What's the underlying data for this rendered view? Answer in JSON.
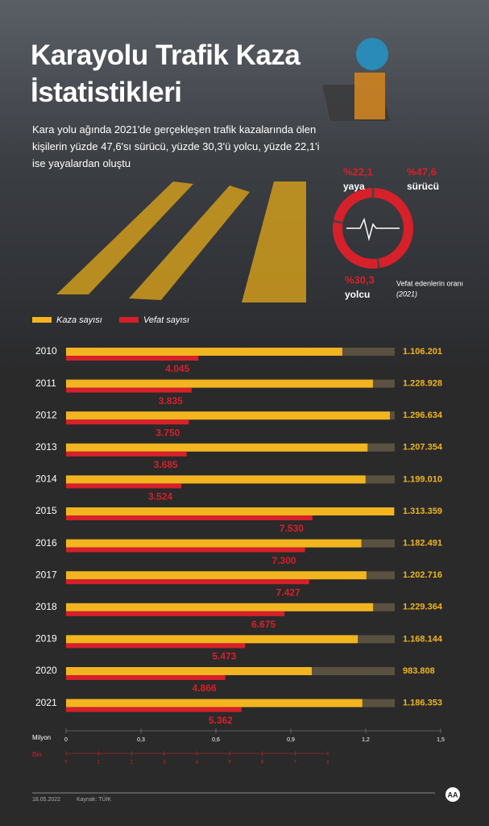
{
  "header": {
    "title": "Karayolu Trafik Kaza İstatistikleri",
    "subtitle": "Kara yolu ağında 2021'de gerçekleşen trafik kazalarında ölen kişilerin yüzde 47,6'sı sürücü, yüzde 30,3'ü yolcu, yüzde 22,1'i ise yayalardan oluştu"
  },
  "chart_data": [
    {
      "type": "bar",
      "orientation": "horizontal",
      "categories": [
        "2010",
        "2011",
        "2012",
        "2013",
        "2014",
        "2015",
        "2016",
        "2017",
        "2018",
        "2019",
        "2020",
        "2021"
      ],
      "series": [
        {
          "name": "Kaza sayısı",
          "color": "#f2b51f",
          "axis": "x",
          "values": [
            1.106201,
            1.228928,
            1.296634,
            1.207354,
            1.19901,
            1.313359,
            1.182491,
            1.202716,
            1.229364,
            1.168144,
            0.983808,
            1.186353
          ],
          "value_labels": [
            "1.106.201",
            "1.228.928",
            "1.296.634",
            "1.207.354",
            "1.199.010",
            "1.313.359",
            "1.182.491",
            "1.202.716",
            "1.229.364",
            "1.168.144",
            "983.808",
            "1.186.353"
          ]
        },
        {
          "name": "Vefat sayısı",
          "color": "#d6202a",
          "axis": "x2",
          "values": [
            4.045,
            3.835,
            3.75,
            3.685,
            3.524,
            7.53,
            7.3,
            7.427,
            6.675,
            5.473,
            4.866,
            5.362
          ],
          "value_labels": [
            "4.045",
            "3.835",
            "3.750",
            "3.685",
            "3.524",
            "7.530",
            "7.300",
            "7.427",
            "6.675",
            "5.473",
            "4.866",
            "5.362"
          ]
        }
      ],
      "xlabel": "Milyon",
      "xlim": [
        0,
        1.5
      ],
      "xticks": [
        0,
        {
          "value": 0.3,
          "label": "0,3"
        },
        {
          "value": 0.6,
          "label": "0,6"
        },
        {
          "value": 0.9,
          "label": "0,9"
        },
        {
          "value": 1.2,
          "label": "1,2"
        },
        {
          "value": 1.5,
          "label": "1,5"
        }
      ],
      "x2label": "Bin",
      "x2lim": [
        0,
        8
      ],
      "x2ticks": [
        0,
        1,
        2,
        3,
        4,
        5,
        6,
        7,
        8
      ]
    },
    {
      "type": "pie",
      "donut": true,
      "color": "#d6202a",
      "categories": [
        "yaya",
        "sürücü",
        "yolcu"
      ],
      "values": [
        22.1,
        47.6,
        30.3
      ],
      "value_labels": [
        "%22,1",
        "%47,6",
        "%30,3"
      ],
      "caption": "Vefat edenlerin oranı",
      "caption_year": "(2021)"
    }
  ],
  "footer": {
    "date": "18.05.2022",
    "source": "Kaynak: TÜİK",
    "logo": "AA"
  }
}
